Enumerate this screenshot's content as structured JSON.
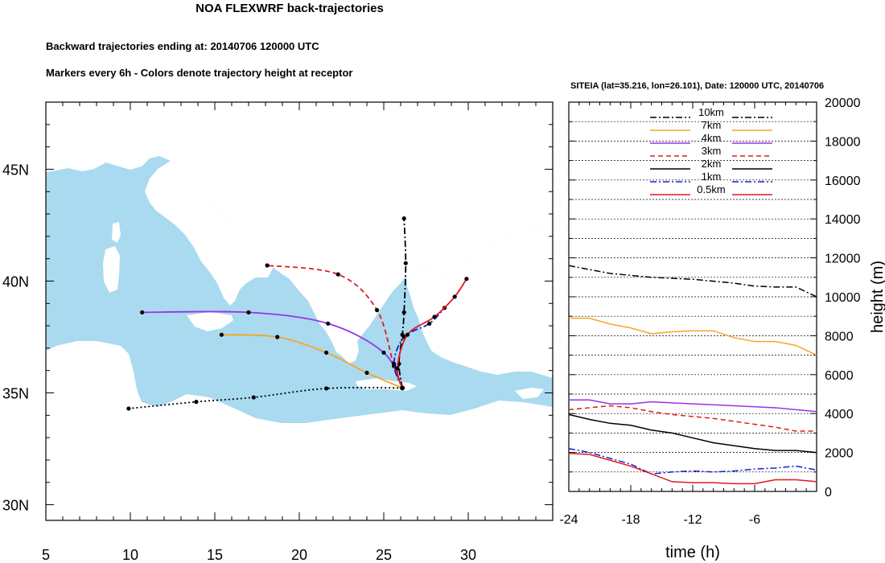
{
  "title": "NOA FLEXWRF back-trajectories",
  "subtitle_line1": "Backward trajectories ending at: 20140706  120000 UTC",
  "subtitle_line2": "Markers every 6h - Colors denote trajectory height at receptor",
  "colors": {
    "sea": "#a9daf0",
    "land": "#ffffff",
    "h10km": "#000000",
    "h7km": "#f5a623",
    "h4km": "#9932e6",
    "h3km": "#e0191e",
    "h2km": "#000000",
    "h1km": "#1420d2",
    "h05km": "#e0191e"
  },
  "chart_data": [
    {
      "type": "map-trajectories",
      "x_ticks": [
        5,
        10,
        15,
        20,
        25,
        30
      ],
      "y_ticks": [
        "30N",
        "35N",
        "40N",
        "45N"
      ],
      "y_tick_values": [
        30,
        35,
        40,
        45
      ],
      "xlim": [
        5,
        35
      ],
      "ylim": [
        29.3,
        48
      ],
      "receptor": {
        "lon": 26.1,
        "lat": 35.22
      },
      "series": [
        {
          "height": "10km",
          "style": "dashdot",
          "color": "#000000",
          "lon": [
            26.1,
            25.9,
            26.1,
            26.2,
            26.3,
            26.2
          ],
          "lat": [
            35.22,
            36.3,
            37.6,
            38.6,
            40.8,
            42.8
          ]
        },
        {
          "height": "7km",
          "style": "solid",
          "color": "#f5a623",
          "lon": [
            26.1,
            24.0,
            21.6,
            18.7,
            15.4
          ],
          "lat": [
            35.22,
            35.9,
            36.8,
            37.5,
            37.6
          ]
        },
        {
          "height": "4km",
          "style": "solid",
          "color": "#9932e6",
          "lon": [
            26.1,
            25.0,
            21.7,
            17.0,
            10.7
          ],
          "lat": [
            35.22,
            36.8,
            38.1,
            38.6,
            38.6
          ]
        },
        {
          "height": "3km",
          "style": "dashed",
          "color": "#e0191e",
          "lon": [
            26.1,
            25.6,
            24.6,
            22.3,
            18.1
          ],
          "lat": [
            35.22,
            36.2,
            38.7,
            40.3,
            40.7
          ]
        },
        {
          "height": "2km",
          "style": "dotted",
          "color": "#000000",
          "lon": [
            26.1,
            21.6,
            17.3,
            13.9,
            9.9
          ],
          "lat": [
            35.22,
            35.2,
            34.8,
            34.6,
            34.3
          ]
        },
        {
          "height": "1km",
          "style": "dashdot",
          "color": "#1420d2",
          "lon": [
            26.1,
            25.6,
            26.2,
            27.7,
            28.6
          ],
          "lat": [
            35.22,
            36.3,
            37.5,
            38.1,
            38.8
          ]
        },
        {
          "height": "0.5km",
          "style": "solid",
          "color": "#e0191e",
          "lon": [
            26.1,
            25.8,
            26.4,
            28.0,
            29.2,
            29.9
          ],
          "lat": [
            35.22,
            36.1,
            37.6,
            38.4,
            39.3,
            40.1
          ]
        }
      ]
    },
    {
      "type": "line",
      "title": "SITEIA (lat=35.216,  lon=26.101), Date: 120000 UTC, 20140706",
      "xlabel": "time (h)",
      "ylabel": "height (m)",
      "xlim": [
        -24,
        0
      ],
      "ylim": [
        0,
        20000
      ],
      "x_ticks": [
        -24,
        -18,
        -12,
        -6
      ],
      "y_ticks": [
        0,
        2000,
        4000,
        6000,
        8000,
        10000,
        12000,
        14000,
        16000,
        18000,
        20000
      ],
      "x": [
        -24,
        -22,
        -20,
        -18,
        -16,
        -14,
        -12,
        -10,
        -8,
        -6,
        -4,
        -2,
        0
      ],
      "legend_position": "top-center",
      "series": [
        {
          "name": "10km",
          "style": "dashdot",
          "color": "#000000",
          "values": [
            11600,
            11400,
            11200,
            11100,
            11000,
            10950,
            10900,
            10800,
            10700,
            10550,
            10500,
            10500,
            10000
          ]
        },
        {
          "name": "7km",
          "style": "solid",
          "color": "#f5a623",
          "values": [
            8900,
            8900,
            8600,
            8400,
            8100,
            8200,
            8250,
            8250,
            7900,
            7700,
            7700,
            7500,
            7000
          ]
        },
        {
          "name": "4km",
          "style": "solid",
          "color": "#9932e6",
          "values": [
            4700,
            4700,
            4500,
            4500,
            4600,
            4550,
            4500,
            4450,
            4400,
            4350,
            4300,
            4200,
            4100
          ]
        },
        {
          "name": "3km",
          "style": "dashed",
          "color": "#e0191e",
          "values": [
            4200,
            4300,
            4400,
            4300,
            4100,
            3950,
            3850,
            3750,
            3600,
            3450,
            3300,
            3100,
            3100
          ]
        },
        {
          "name": "2km",
          "style": "solid",
          "color": "#000000",
          "values": [
            3950,
            3700,
            3500,
            3400,
            3150,
            3000,
            2750,
            2500,
            2350,
            2200,
            2100,
            2100,
            2000
          ]
        },
        {
          "name": "1km",
          "style": "dashdot",
          "color": "#1420d2",
          "values": [
            2200,
            2000,
            1700,
            1400,
            900,
            1000,
            1050,
            1000,
            1050,
            1150,
            1200,
            1300,
            1100
          ]
        },
        {
          "name": "0.5km",
          "style": "solid",
          "color": "#e0191e",
          "values": [
            1950,
            1900,
            1600,
            1300,
            900,
            500,
            450,
            450,
            400,
            400,
            600,
            600,
            500
          ]
        }
      ]
    }
  ]
}
